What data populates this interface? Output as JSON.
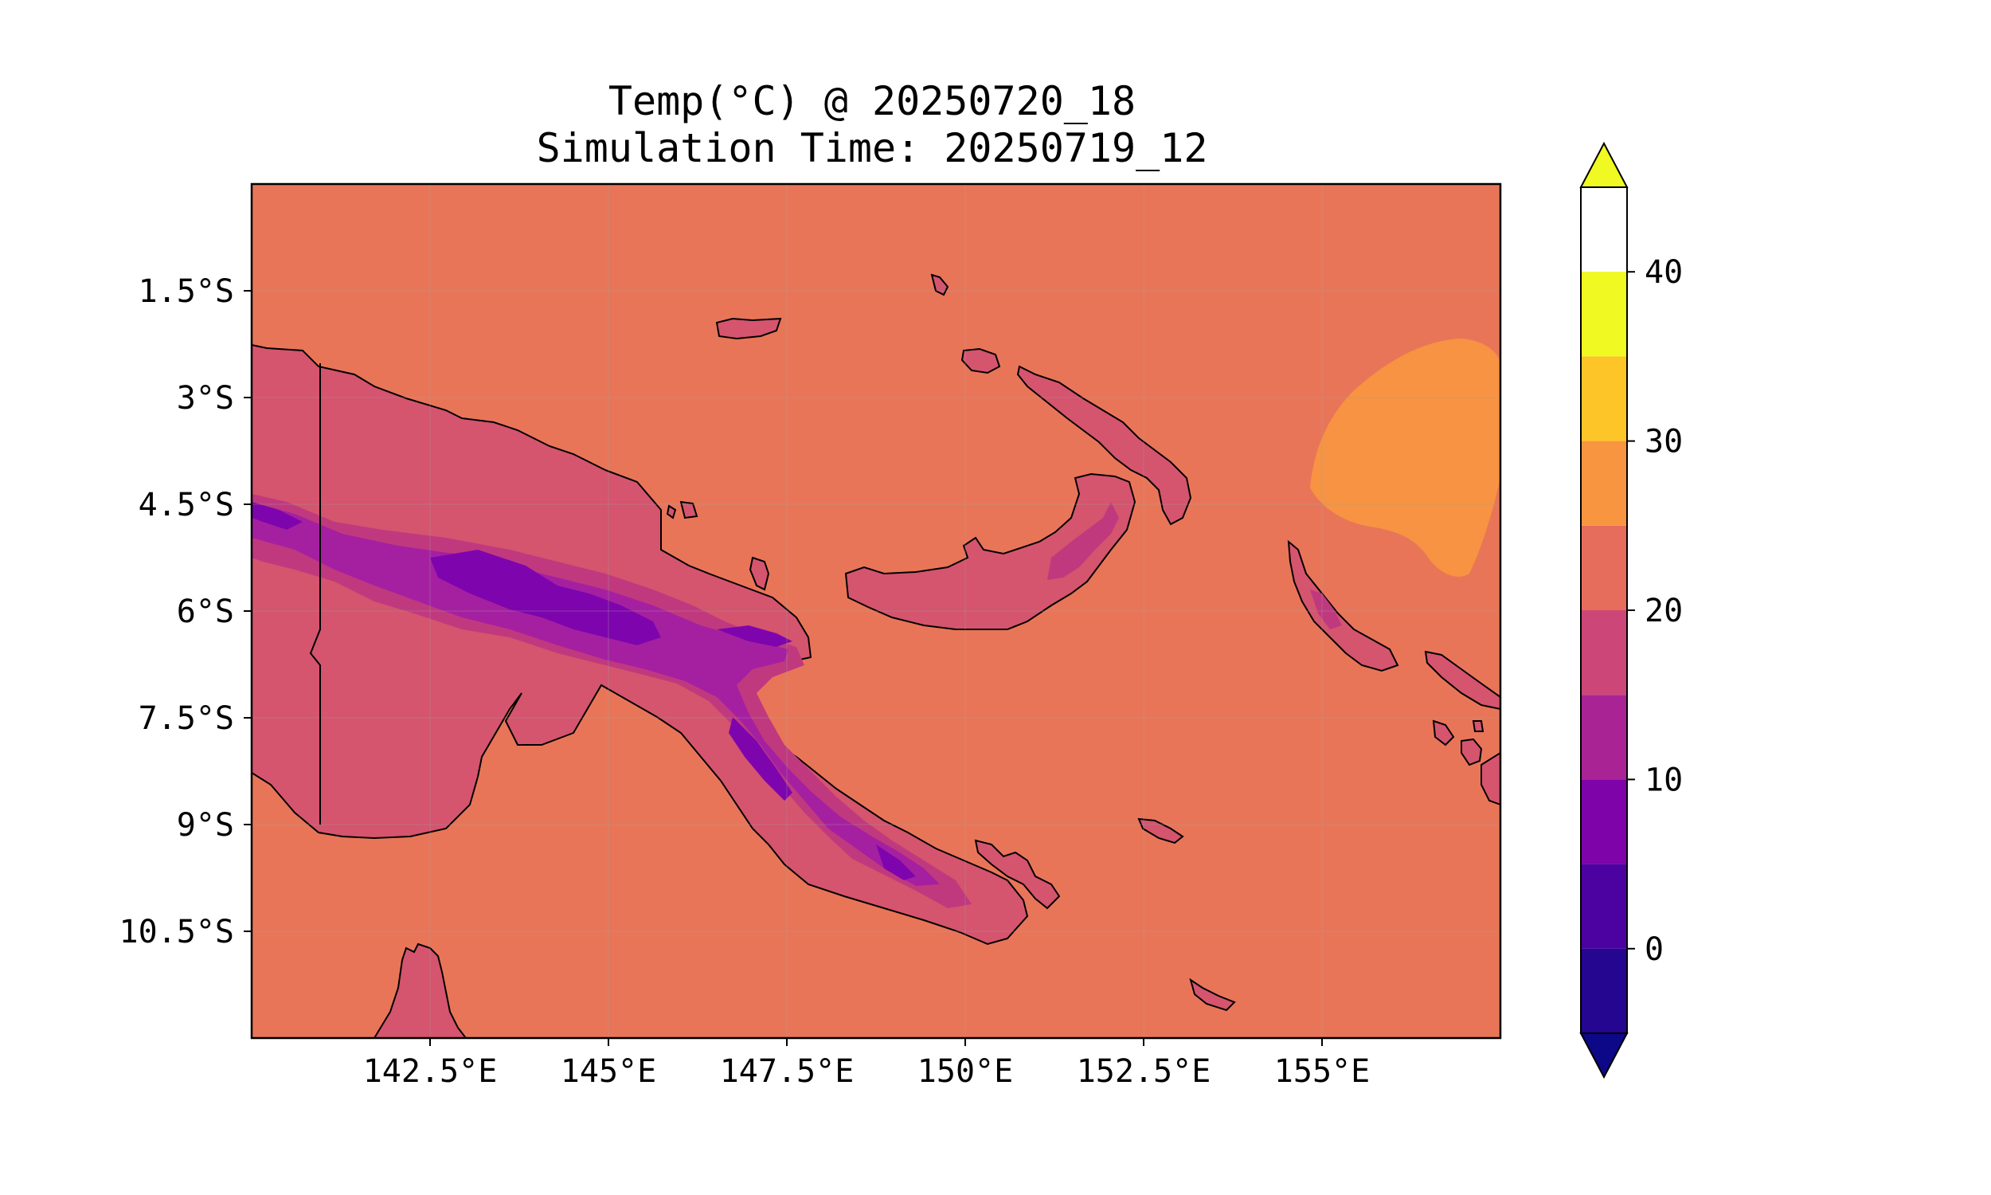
{
  "title_line1": "Temp(°C) @ 20250720_18",
  "title_line2": "Simulation Time: 20250719_12",
  "map": {
    "lon_range": [
      140,
      157.5
    ],
    "lat_range": [
      -12,
      0
    ],
    "lon_ticks": [
      {
        "value": 142.5,
        "label": "142.5°E"
      },
      {
        "value": 145,
        "label": "145°E"
      },
      {
        "value": 147.5,
        "label": "147.5°E"
      },
      {
        "value": 150,
        "label": "150°E"
      },
      {
        "value": 152.5,
        "label": "152.5°E"
      },
      {
        "value": 155,
        "label": "155°E"
      }
    ],
    "lat_ticks": [
      {
        "value": -1.5,
        "label": "1.5°S"
      },
      {
        "value": -3,
        "label": "3°S"
      },
      {
        "value": -4.5,
        "label": "4.5°S"
      },
      {
        "value": -6,
        "label": "6°S"
      },
      {
        "value": -7.5,
        "label": "7.5°S"
      },
      {
        "value": -9,
        "label": "9°S"
      },
      {
        "value": -10.5,
        "label": "10.5°S"
      }
    ],
    "gridlines": true,
    "ocean_color": "#e97558",
    "land_color": "#d5546e"
  },
  "colorbar": {
    "levels": [
      -5,
      0,
      5,
      10,
      15,
      20,
      25,
      30,
      35,
      40,
      45
    ],
    "colors": [
      "#240691",
      "#4c02a1",
      "#7e03a8",
      "#a92395",
      "#cc4778",
      "#e66c5c",
      "#f89540",
      "#fdc527",
      "#f0f921"
    ],
    "extend_low_color": "#0d0887",
    "extend_high_color": "#f0f921",
    "ticks": [
      0,
      10,
      20,
      30,
      40
    ],
    "tick_labels": [
      "0",
      "10",
      "20",
      "30",
      "40"
    ]
  }
}
